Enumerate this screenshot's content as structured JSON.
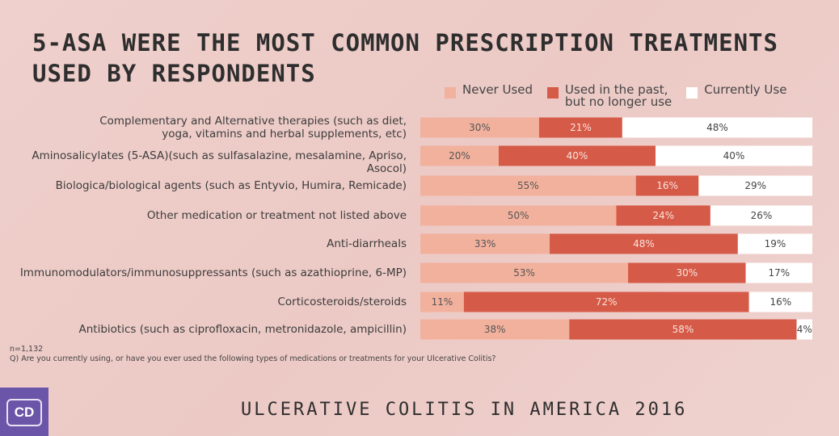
{
  "title": "5-ASA were the most common prescription treatments used by respondents",
  "colors": {
    "never": "#f2b19d",
    "past": "#d55a47",
    "current": "#ffffff",
    "background": "#eecfcb",
    "logo": "#6a55a8"
  },
  "chart_data": {
    "type": "bar",
    "orientation": "horizontal-stacked-100",
    "categories": [
      "Complementary and Alternative therapies (such as diet,\nyoga, vitamins and herbal supplements, etc)",
      "Aminosalicylates (5-ASA)(such as sulfasalazine, mesalamine, Apriso, Asocol)",
      "Biologica/biological agents (such as Entyvio, Humira, Remicade)",
      "Other medication or treatment not listed above",
      "Anti-diarrheals",
      "Immunomodulators/immunosuppressants (such as azathioprine, 6-MP)",
      "Corticosteroids/steroids",
      "Antibiotics (such as ciprofloxacin, metronidazole, ampicillin)"
    ],
    "series": [
      {
        "name": "Never Used",
        "values": [
          30,
          20,
          55,
          50,
          33,
          53,
          11,
          38
        ]
      },
      {
        "name": "Used in the past,\nbut no longer use",
        "values": [
          21,
          40,
          16,
          24,
          48,
          30,
          72,
          58
        ]
      },
      {
        "name": "Currently Use",
        "values": [
          48,
          40,
          29,
          26,
          19,
          17,
          16,
          4
        ]
      }
    ],
    "unit": "%",
    "legend": "top-right",
    "grid": false
  },
  "notes": {
    "n": "n=1,132",
    "question": "Q) Are you currently using, or have you ever used the following types of medications or treatments for your Ulcerative Colitis?"
  },
  "footer": "Ulcerative Colitis in America 2016",
  "logo": {
    "text": "CD"
  }
}
